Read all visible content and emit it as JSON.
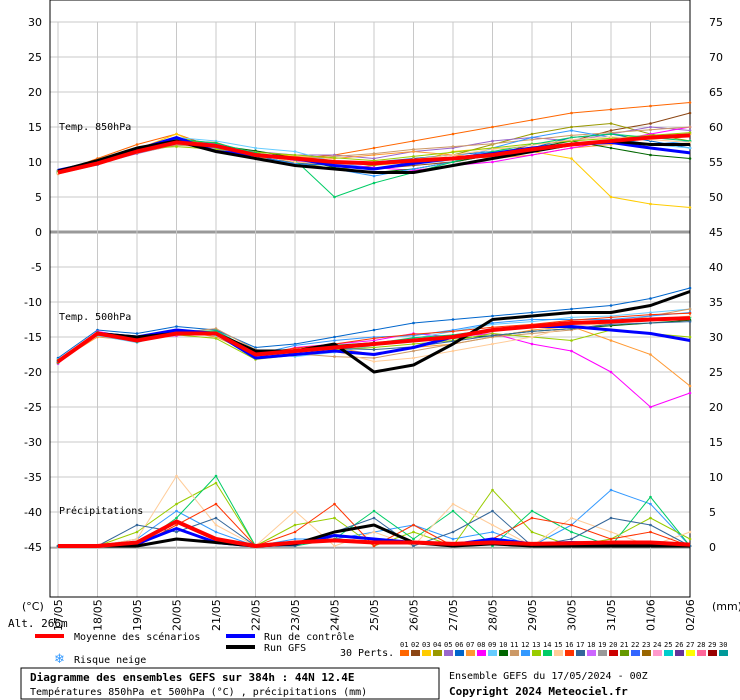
{
  "chart_data": {
    "type": "line",
    "title": "Diagramme des ensembles GEFS sur 384h : 44N 12.4E",
    "subtitle": "Températures 850hPa et 500hPa (°C) , précipitations (mm)",
    "run_info": "Ensemble GEFS du 17/05/2024 - 00Z",
    "copyright": "Copyright 2024 Meteociel.fr",
    "altitude": "Alt. 266m",
    "left_unit": "(°C)",
    "right_unit": "(mm)",
    "left_ticks": [
      "30",
      "25",
      "20",
      "15",
      "10",
      "5",
      "0",
      "-5",
      "-10",
      "-15",
      "-20",
      "-25",
      "-30",
      "-35",
      "-40",
      "-45"
    ],
    "right_ticks": [
      "75",
      "70",
      "65",
      "60",
      "55",
      "50",
      "45",
      "40",
      "35",
      "30",
      "25",
      "20",
      "15",
      "10",
      "5",
      "0"
    ],
    "dates": [
      "17/05",
      "18/05",
      "19/05",
      "20/05",
      "21/05",
      "22/05",
      "23/05",
      "24/05",
      "25/05",
      "26/05",
      "27/05",
      "28/05",
      "29/05",
      "30/05",
      "31/05",
      "01/06",
      "02/06"
    ],
    "panel_labels": {
      "t850": "Temp. 850hPa",
      "t500": "Temp. 500hPa",
      "precip": "Précipitations"
    },
    "legend": {
      "mean": "Moyenne des scénarios",
      "control": "Run de contrôle",
      "gfs": "Run GFS",
      "snow": "Risque neige",
      "perts": "30 Perts.",
      "member_numbers": [
        "01",
        "02",
        "03",
        "04",
        "05",
        "06",
        "07",
        "08",
        "09",
        "10",
        "11",
        "12",
        "13",
        "14",
        "15",
        "16",
        "17",
        "18",
        "19",
        "20",
        "21",
        "22",
        "23",
        "24",
        "25",
        "26",
        "27",
        "28",
        "29",
        "30"
      ],
      "member_colors": [
        "#ff6600",
        "#8b4513",
        "#ffcc00",
        "#999900",
        "#9966cc",
        "#0066cc",
        "#ff9933",
        "#ff00ff",
        "#66ccff",
        "#006600",
        "#cc9966",
        "#3399ff",
        "#99cc00",
        "#00cc66",
        "#ffcc99",
        "#ff3300",
        "#336699",
        "#cc66ff",
        "#999999",
        "#cc0000",
        "#669900",
        "#3366ff",
        "#996600",
        "#ff99cc",
        "#00cccc",
        "#663399",
        "#ffff00",
        "#ff6699",
        "#990000",
        "#009999"
      ],
      "mean_color": "#ff0000",
      "control_color": "#0000ff",
      "gfs_color": "#000000"
    },
    "series": [
      {
        "name": "Moyenne des scénarios",
        "t850": [
          8.5,
          9.8,
          11.5,
          12.8,
          12.3,
          11.0,
          10.5,
          10.0,
          9.8,
          10.2,
          10.5,
          11.0,
          11.8,
          12.5,
          13.0,
          13.5,
          13.8
        ],
        "t500": [
          -18.5,
          -14.5,
          -15.5,
          -14.5,
          -14.5,
          -17.5,
          -17.0,
          -16.5,
          -16.0,
          -15.5,
          -15.0,
          -14.0,
          -13.5,
          -13.0,
          -12.8,
          -12.5,
          -12.3
        ],
        "precip": [
          0,
          0,
          0.5,
          3.5,
          1.0,
          0,
          0.5,
          0.8,
          0.5,
          0.5,
          0.3,
          0.5,
          0.3,
          0.4,
          0.5,
          0.5,
          0.2
        ]
      },
      {
        "name": "Run de contrôle",
        "t850": [
          8.8,
          10.0,
          11.8,
          13.5,
          11.5,
          11.0,
          10.5,
          9.5,
          9.0,
          9.8,
          10.5,
          11.2,
          12.0,
          12.5,
          12.8,
          12.0,
          11.3
        ],
        "t500": [
          -18.5,
          -14.5,
          -15.0,
          -14.0,
          -14.5,
          -18.0,
          -17.5,
          -17.0,
          -17.5,
          -16.5,
          -15.0,
          -14.0,
          -13.5,
          -13.5,
          -14.0,
          -14.5,
          -15.5
        ],
        "precip": [
          0,
          0,
          0.3,
          2.5,
          0.5,
          0,
          0.3,
          1.5,
          1.0,
          0.5,
          0.2,
          1.0,
          0.3,
          0.5,
          0.3,
          0.3,
          0
        ]
      },
      {
        "name": "Run GFS",
        "t850": [
          8.7,
          10.2,
          12.0,
          13.0,
          11.5,
          10.5,
          9.5,
          9.0,
          8.5,
          8.5,
          9.5,
          10.5,
          11.5,
          12.5,
          13.0,
          12.5,
          12.5
        ],
        "t500": [
          -18.5,
          -14.5,
          -15.0,
          -14.5,
          -14.5,
          -17.0,
          -17.0,
          -16.0,
          -20.0,
          -19.0,
          -16.0,
          -12.5,
          -12.0,
          -11.5,
          -11.5,
          -10.5,
          -8.5
        ],
        "precip": [
          0,
          0,
          0,
          1.0,
          0.5,
          0,
          0.3,
          2.0,
          3.0,
          0.5,
          0,
          0.3,
          0,
          0,
          0,
          0,
          0
        ]
      }
    ],
    "members_t850": [
      [
        8.5,
        10.5,
        12.5,
        14.0,
        12.0,
        11.0,
        10.5,
        11.0,
        12.0,
        13.0,
        14.0,
        15.0,
        16.0,
        17.0,
        17.5,
        18.0,
        18.5
      ],
      [
        8.6,
        10.0,
        12.0,
        13.5,
        12.5,
        10.5,
        10.0,
        9.5,
        9.0,
        9.5,
        10.0,
        11.0,
        12.5,
        13.0,
        14.5,
        15.5,
        17.0
      ],
      [
        8.7,
        10.2,
        11.8,
        14.0,
        11.5,
        11.5,
        10.8,
        10.2,
        9.5,
        10.0,
        11.5,
        12.0,
        11.5,
        10.5,
        5.0,
        4.0,
        3.5
      ],
      [
        8.4,
        9.9,
        11.5,
        13.0,
        12.8,
        11.0,
        10.0,
        9.0,
        9.5,
        10.5,
        11.0,
        12.5,
        14.0,
        15.0,
        15.5,
        14.0,
        13.0
      ],
      [
        8.5,
        9.7,
        11.2,
        12.5,
        12.0,
        11.5,
        11.0,
        11.0,
        10.5,
        11.5,
        12.0,
        13.0,
        13.5,
        13.0,
        14.0,
        15.0,
        14.5
      ],
      [
        8.8,
        10.1,
        11.6,
        13.2,
        12.2,
        10.8,
        9.8,
        9.5,
        10.0,
        10.5,
        11.0,
        11.5,
        12.0,
        13.5,
        14.0,
        13.0,
        12.0
      ],
      [
        8.3,
        9.6,
        11.4,
        12.6,
        11.8,
        10.5,
        10.8,
        10.5,
        11.0,
        11.5,
        11.0,
        10.5,
        11.0,
        12.0,
        12.5,
        13.5,
        14.0
      ],
      [
        8.6,
        9.8,
        11.8,
        12.9,
        12.6,
        11.2,
        10.2,
        9.8,
        9.2,
        8.8,
        9.5,
        10.0,
        11.0,
        12.0,
        13.0,
        14.0,
        15.0
      ],
      [
        8.5,
        10.0,
        11.5,
        13.5,
        13.0,
        12.0,
        11.5,
        10.0,
        9.0,
        10.0,
        10.5,
        11.5,
        12.0,
        12.5,
        13.0,
        12.5,
        12.0
      ],
      [
        8.4,
        9.9,
        11.7,
        12.7,
        12.4,
        11.6,
        10.6,
        9.2,
        8.5,
        9.0,
        10.0,
        11.0,
        12.0,
        13.0,
        12.0,
        11.0,
        10.5
      ],
      [
        8.7,
        10.3,
        11.3,
        12.4,
        12.1,
        10.9,
        10.4,
        10.8,
        11.2,
        11.8,
        12.2,
        12.6,
        13.2,
        13.8,
        14.2,
        14.6,
        15.0
      ],
      [
        8.5,
        9.6,
        11.6,
        13.1,
        12.0,
        10.6,
        9.8,
        9.0,
        8.0,
        9.0,
        10.0,
        12.0,
        13.5,
        14.5,
        13.5,
        12.5,
        13.0
      ],
      [
        8.6,
        10.0,
        11.9,
        12.2,
        11.8,
        11.4,
        11.0,
        10.6,
        10.2,
        10.8,
        11.4,
        12.0,
        12.6,
        13.0,
        13.4,
        13.8,
        14.2
      ],
      [
        8.5,
        9.8,
        11.4,
        13.3,
        12.7,
        11.3,
        10.3,
        5.0,
        7.0,
        8.5,
        10.0,
        11.5,
        12.5,
        13.5,
        14.0,
        13.5,
        13.0
      ],
      [
        8.4,
        10.1,
        11.8,
        12.8,
        12.3,
        11.0,
        10.0,
        9.6,
        9.8,
        10.4,
        11.0,
        11.8,
        12.4,
        13.2,
        13.6,
        13.2,
        12.8
      ]
    ],
    "members_t500": [
      [
        -18.0,
        -14.0,
        -14.5,
        -13.5,
        -14.0,
        -16.5,
        -16.0,
        -15.0,
        -14.0,
        -13.0,
        -12.5,
        -12.0,
        -11.5,
        -11.0,
        -10.5,
        -9.5,
        -8.0
      ],
      [
        -18.5,
        -15.0,
        -15.5,
        -14.0,
        -15.0,
        -17.5,
        -17.0,
        -16.5,
        -17.5,
        -16.5,
        -16.0,
        -15.0,
        -14.0,
        -13.5,
        -15.5,
        -17.5,
        -22.0
      ],
      [
        -18.8,
        -14.2,
        -15.2,
        -14.8,
        -14.2,
        -18.0,
        -16.5,
        -16.0,
        -15.5,
        -14.5,
        -15.0,
        -14.5,
        -16.0,
        -17.0,
        -20.0,
        -25.0,
        -23.0
      ],
      [
        -18.2,
        -14.8,
        -15.8,
        -14.2,
        -14.8,
        -17.2,
        -17.8,
        -17.2,
        -16.2,
        -15.2,
        -14.2,
        -13.2,
        -12.8,
        -12.2,
        -12.0,
        -11.5,
        -11.0
      ],
      [
        -18.6,
        -14.4,
        -15.4,
        -14.6,
        -14.6,
        -17.6,
        -16.8,
        -16.2,
        -15.8,
        -15.6,
        -15.2,
        -14.8,
        -14.2,
        -13.8,
        -13.4,
        -13.0,
        -12.6
      ],
      [
        -18.4,
        -14.6,
        -15.6,
        -14.4,
        -13.8,
        -16.8,
        -17.4,
        -17.8,
        -18.0,
        -17.0,
        -16.0,
        -15.0,
        -14.5,
        -14.0,
        -13.0,
        -12.0,
        -11.0
      ],
      [
        -18.5,
        -14.5,
        -15.5,
        -14.5,
        -14.5,
        -17.5,
        -16.2,
        -15.5,
        -15.0,
        -14.8,
        -14.0,
        -13.0,
        -12.5,
        -12.5,
        -12.5,
        -12.0,
        -11.5
      ],
      [
        -18.3,
        -14.7,
        -15.3,
        -14.7,
        -15.2,
        -18.2,
        -17.6,
        -16.8,
        -16.5,
        -16.0,
        -15.5,
        -14.5,
        -15.0,
        -15.5,
        -14.0,
        -14.5,
        -15.0
      ],
      [
        -18.7,
        -14.3,
        -15.7,
        -14.3,
        -14.1,
        -17.1,
        -16.9,
        -16.3,
        -15.9,
        -15.1,
        -14.7,
        -13.9,
        -13.5,
        -13.1,
        -12.9,
        -12.5,
        -12.2
      ],
      [
        -18.5,
        -14.5,
        -15.5,
        -14.0,
        -14.5,
        -17.0,
        -17.0,
        -17.0,
        -18.5,
        -18.0,
        -17.0,
        -16.0,
        -15.0,
        -13.5,
        -13.0,
        -12.5,
        -12.0
      ],
      [
        -18.6,
        -14.6,
        -15.4,
        -14.6,
        -14.4,
        -17.4,
        -16.6,
        -16.0,
        -15.2,
        -14.6,
        -14.2,
        -13.6,
        -13.2,
        -12.6,
        -12.2,
        -11.8,
        -11.6
      ],
      [
        -18.4,
        -14.4,
        -15.6,
        -14.4,
        -14.6,
        -17.6,
        -17.2,
        -16.6,
        -16.8,
        -16.4,
        -15.6,
        -14.8,
        -14.2,
        -13.8,
        -13.2,
        -13.0,
        -12.8
      ]
    ],
    "members_precip": [
      [
        0,
        0,
        1,
        5,
        2,
        0,
        1,
        1,
        2,
        3,
        1,
        2,
        0,
        3,
        8,
        6,
        0
      ],
      [
        0,
        0,
        2,
        6,
        9,
        0,
        3,
        4,
        0,
        2,
        0,
        8,
        2,
        0,
        1,
        4,
        1
      ],
      [
        0,
        0,
        0,
        4,
        10,
        0,
        0,
        1,
        5,
        1,
        5,
        0,
        5,
        2,
        0,
        7,
        0
      ],
      [
        0,
        0,
        1,
        10,
        3,
        0,
        5,
        0,
        2,
        0,
        6,
        3,
        0,
        4,
        2,
        0,
        2
      ],
      [
        0,
        0,
        0,
        3,
        6,
        0,
        2,
        6,
        0,
        3,
        0,
        1,
        4,
        3,
        1,
        2,
        0
      ],
      [
        0,
        0,
        3,
        2,
        4,
        0,
        0,
        2,
        4,
        0,
        2,
        5,
        0,
        1,
        4,
        3,
        0
      ]
    ]
  }
}
